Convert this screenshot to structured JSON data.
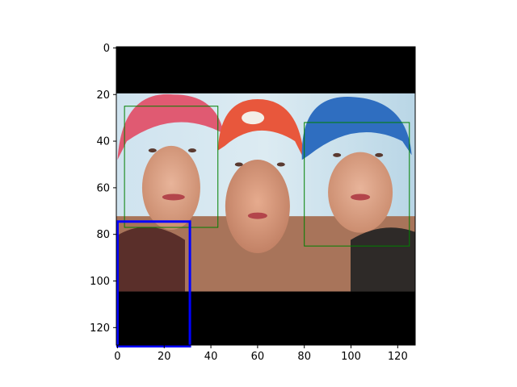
{
  "chart_data": {
    "type": "image",
    "title": "",
    "xlabel": "",
    "ylabel": "",
    "xlim": [
      -0.5,
      127.5
    ],
    "ylim": [
      127.5,
      -0.5
    ],
    "x_ticks": [
      0,
      20,
      40,
      60,
      80,
      100,
      120
    ],
    "y_ticks": [
      0,
      20,
      40,
      60,
      80,
      100,
      120
    ],
    "image": {
      "description_free": true,
      "content_rows": [
        20,
        105
      ],
      "padding_color": "#000000"
    },
    "boxes": [
      {
        "x0": 3,
        "y0": 25,
        "x1": 43,
        "y1": 77,
        "color": "#008000",
        "linewidth": 1
      },
      {
        "x0": 80,
        "y0": 32,
        "x1": 125,
        "y1": 85,
        "color": "#008000",
        "linewidth": 1
      },
      {
        "x0": 0,
        "y0": 74.5,
        "x1": 31,
        "y1": 128,
        "color": "#0000ff",
        "linewidth": 3
      }
    ]
  }
}
